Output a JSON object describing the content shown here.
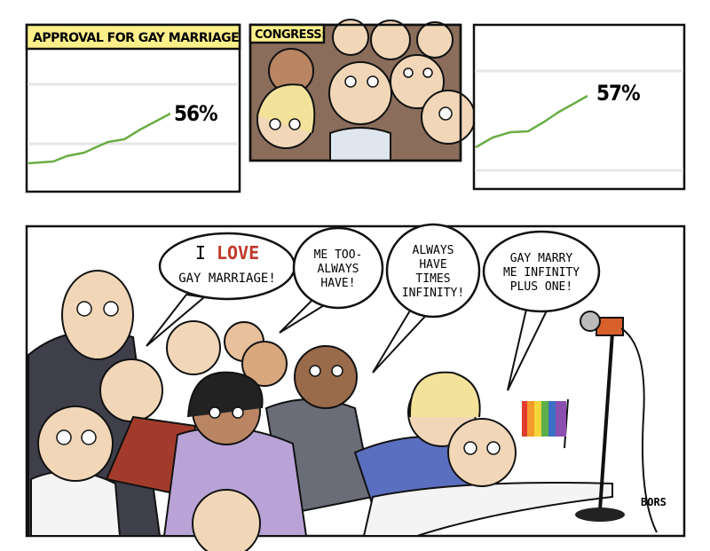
{
  "panels": [
    {
      "header": "APPROVAL FOR GAY MARRIAGE",
      "label": "56%"
    },
    {
      "header": "CONGRESS:"
    },
    {
      "label": "57%"
    }
  ],
  "bubbles": [
    {
      "first": "I",
      "emphasis": "LOVE",
      "lines": [
        "GAY MARRIAGE!"
      ]
    },
    {
      "lines": [
        "ME TOO-",
        "ALWAYS",
        "HAVE!"
      ]
    },
    {
      "lines": [
        "ALWAYS",
        "HAVE",
        "TIMES",
        "INFINITY!"
      ]
    },
    {
      "lines": [
        "GAY MARRY",
        "ME INFINITY",
        "PLUS ONE!"
      ]
    }
  ],
  "signature": "BORS"
}
